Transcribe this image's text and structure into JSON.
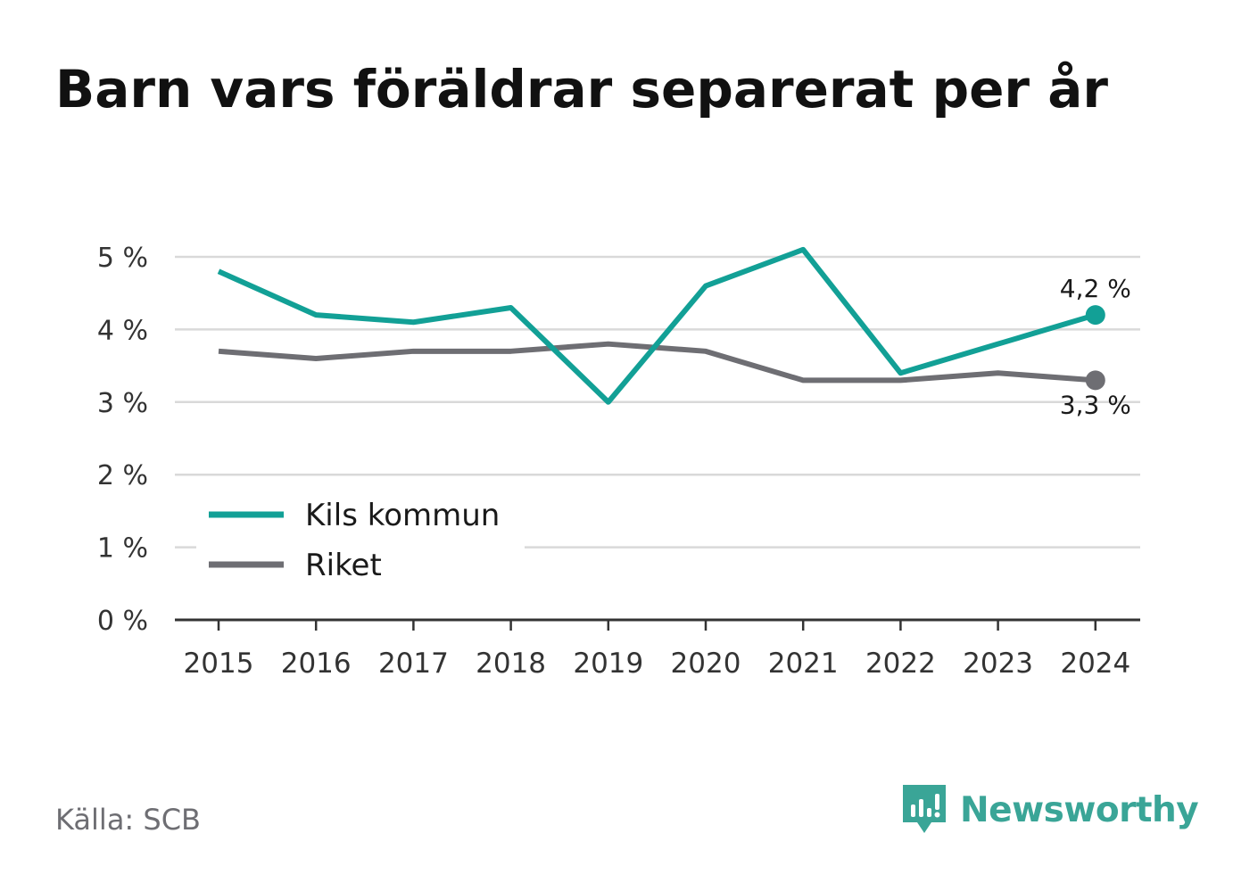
{
  "title": "Barn vars föräldrar separerat per år",
  "source": "Källa: SCB",
  "brand": "Newsworthy",
  "colors": {
    "kommun": "#12a096",
    "riket": "#6e6e73",
    "grid": "#d9d9d9",
    "axis": "#333333",
    "brand": "#3aa597"
  },
  "chart_data": {
    "type": "line",
    "x": [
      "2015",
      "2016",
      "2017",
      "2018",
      "2019",
      "2020",
      "2021",
      "2022",
      "2023",
      "2024"
    ],
    "y_ticks": [
      "0 %",
      "1 %",
      "2 %",
      "3 %",
      "4 %",
      "5 %"
    ],
    "ylim": [
      0,
      5
    ],
    "grid": true,
    "legend": "bottom-left",
    "series": [
      {
        "name": "Kils kommun",
        "values": [
          4.8,
          4.2,
          4.1,
          4.3,
          3.0,
          4.6,
          5.1,
          3.4,
          3.8,
          4.2
        ],
        "end_label": "4,2 %"
      },
      {
        "name": "Riket",
        "values": [
          3.7,
          3.6,
          3.7,
          3.7,
          3.8,
          3.7,
          3.3,
          3.3,
          3.4,
          3.3
        ],
        "end_label": "3,3 %"
      }
    ]
  }
}
